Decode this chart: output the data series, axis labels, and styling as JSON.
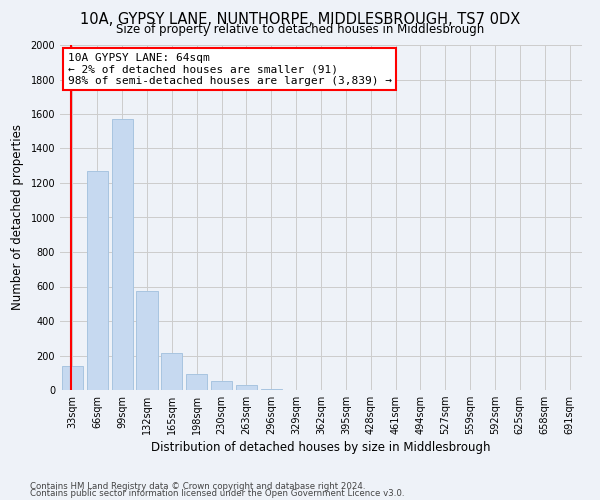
{
  "title": "10A, GYPSY LANE, NUNTHORPE, MIDDLESBROUGH, TS7 0DX",
  "subtitle": "Size of property relative to detached houses in Middlesbrough",
  "xlabel": "Distribution of detached houses by size in Middlesbrough",
  "ylabel": "Number of detached properties",
  "footnote1": "Contains HM Land Registry data © Crown copyright and database right 2024.",
  "footnote2": "Contains public sector information licensed under the Open Government Licence v3.0.",
  "bar_labels": [
    "33sqm",
    "66sqm",
    "99sqm",
    "132sqm",
    "165sqm",
    "198sqm",
    "230sqm",
    "263sqm",
    "296sqm",
    "329sqm",
    "362sqm",
    "395sqm",
    "428sqm",
    "461sqm",
    "494sqm",
    "527sqm",
    "559sqm",
    "592sqm",
    "625sqm",
    "658sqm",
    "691sqm"
  ],
  "bar_values": [
    140,
    1270,
    1570,
    575,
    215,
    95,
    55,
    30,
    5,
    0,
    0,
    0,
    0,
    0,
    0,
    0,
    0,
    0,
    0,
    0,
    0
  ],
  "bar_color": "#c6d9f0",
  "bar_edgecolor": "#a8c4e0",
  "vline_x": 0.0,
  "vline_color": "red",
  "annotation_line1": "10A GYPSY LANE: 64sqm",
  "annotation_line2": "← 2% of detached houses are smaller (91)",
  "annotation_line3": "98% of semi-detached houses are larger (3,839) →",
  "annotation_box_edgecolor": "red",
  "annotation_box_facecolor": "white",
  "ylim": [
    0,
    2000
  ],
  "yticks": [
    0,
    200,
    400,
    600,
    800,
    1000,
    1200,
    1400,
    1600,
    1800,
    2000
  ],
  "grid_color": "#cccccc",
  "background_color": "#eef2f8",
  "title_fontsize": 10.5,
  "subtitle_fontsize": 8.5,
  "axis_label_fontsize": 8.5,
  "tick_fontsize": 7,
  "annotation_fontsize": 8,
  "footnote_fontsize": 6.2
}
